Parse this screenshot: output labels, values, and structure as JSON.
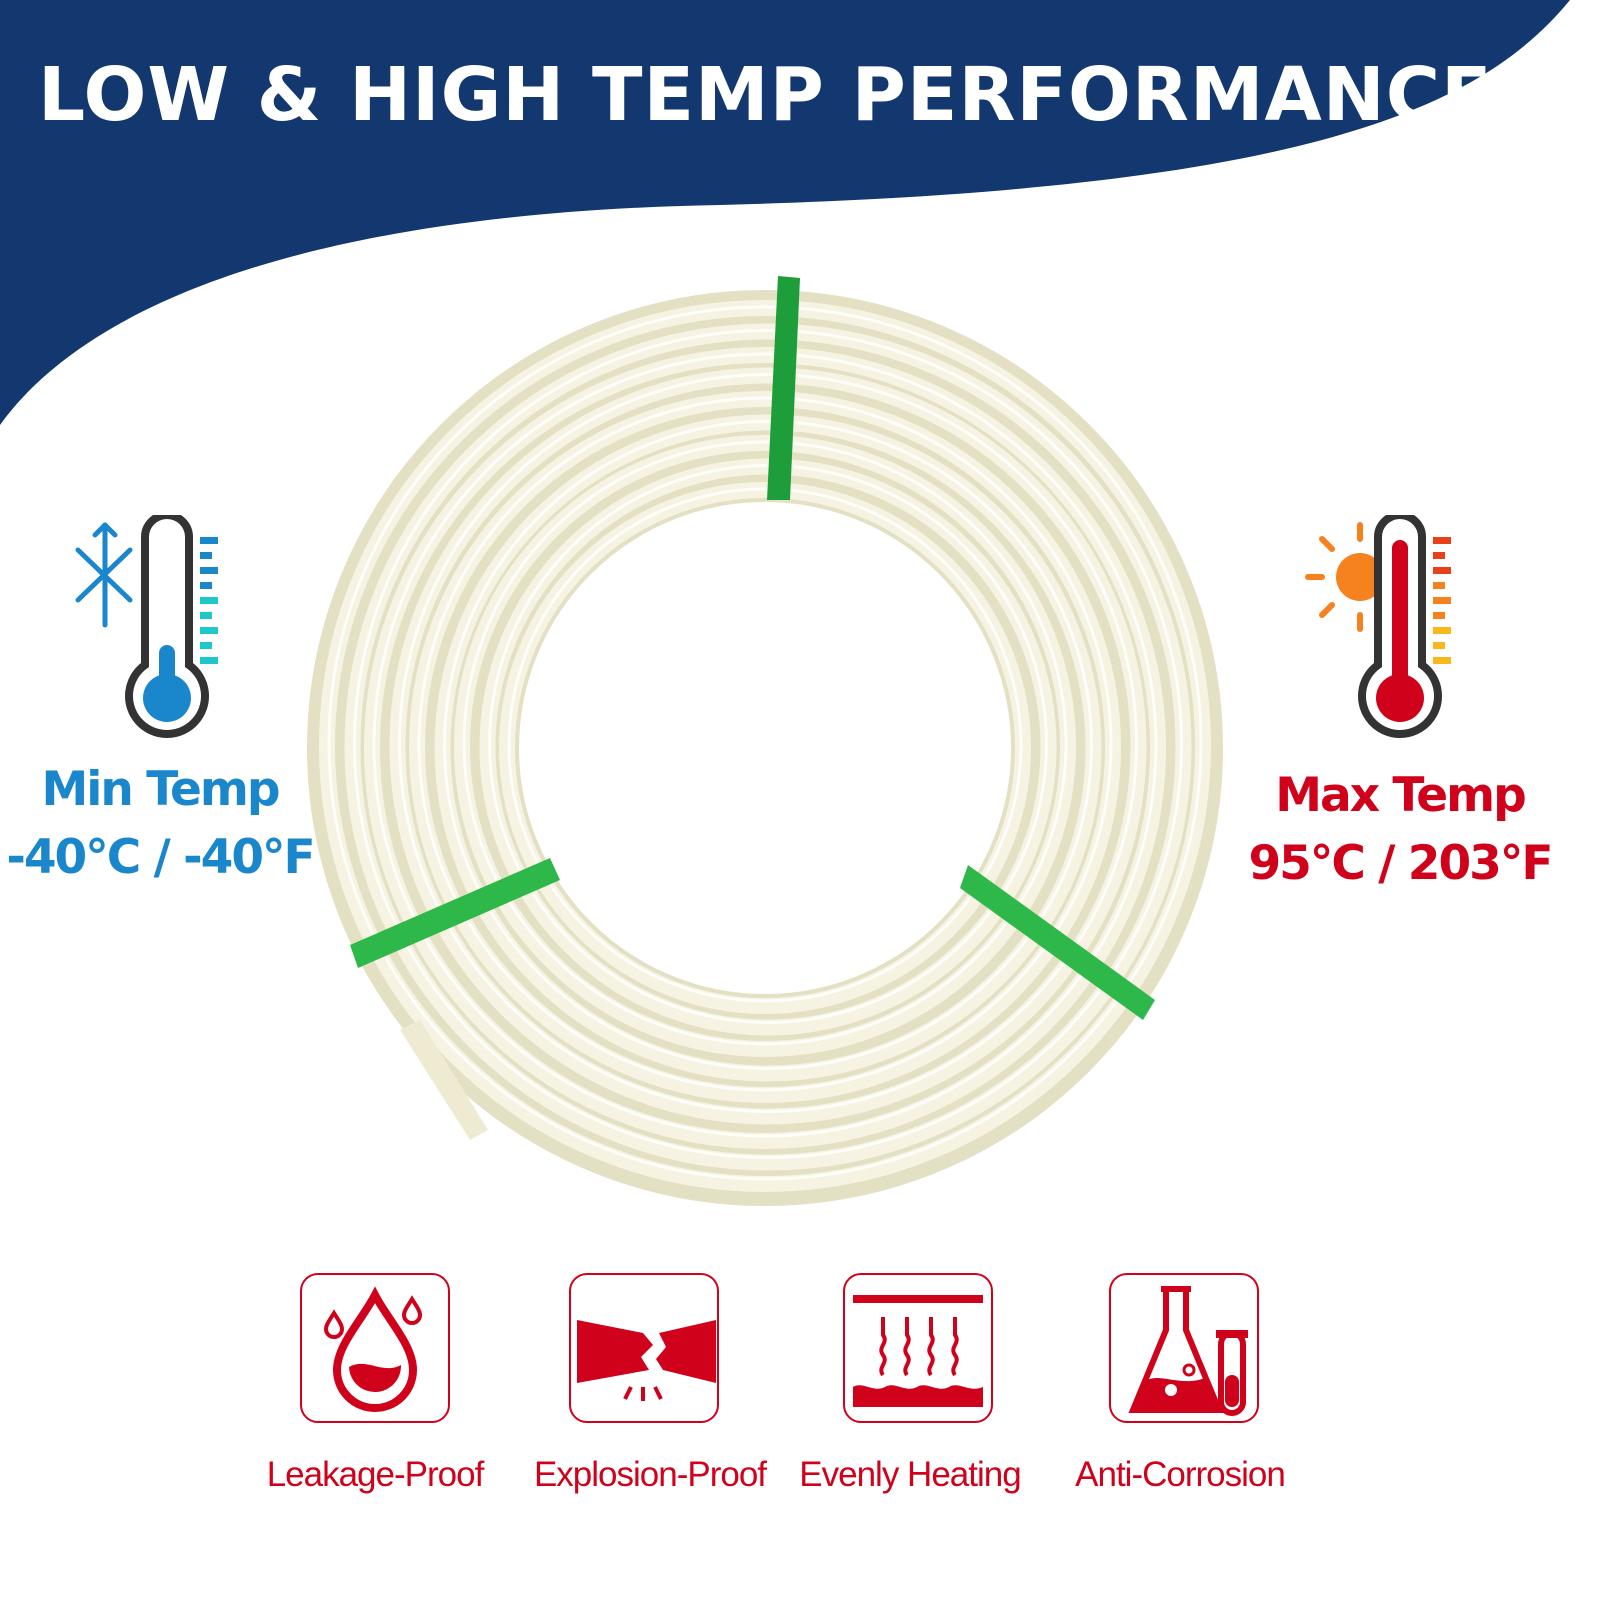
{
  "header": {
    "title": "LOW & HIGH TEMP PERFORMANCE"
  },
  "min_temp": {
    "label": "Min Temp",
    "value": "-40°C / -40°F",
    "icon": "cold-thermometer-icon"
  },
  "max_temp": {
    "label": "Max Temp",
    "value": "95°C / 203°F",
    "icon": "hot-thermometer-icon"
  },
  "features": [
    {
      "label": "Leakage-Proof",
      "icon": "water-drop-icon"
    },
    {
      "label": "Explosion-Proof",
      "icon": "broken-pipe-icon"
    },
    {
      "label": "Evenly Heating",
      "icon": "heat-waves-icon"
    },
    {
      "label": "Anti-Corrosion",
      "icon": "chemical-flask-icon"
    }
  ],
  "colors": {
    "brand_blue": "#12386f",
    "cold": "#1a86cc",
    "hot": "#d0021b",
    "tube": "#f4f1dc",
    "strap": "#1e9e3a"
  }
}
